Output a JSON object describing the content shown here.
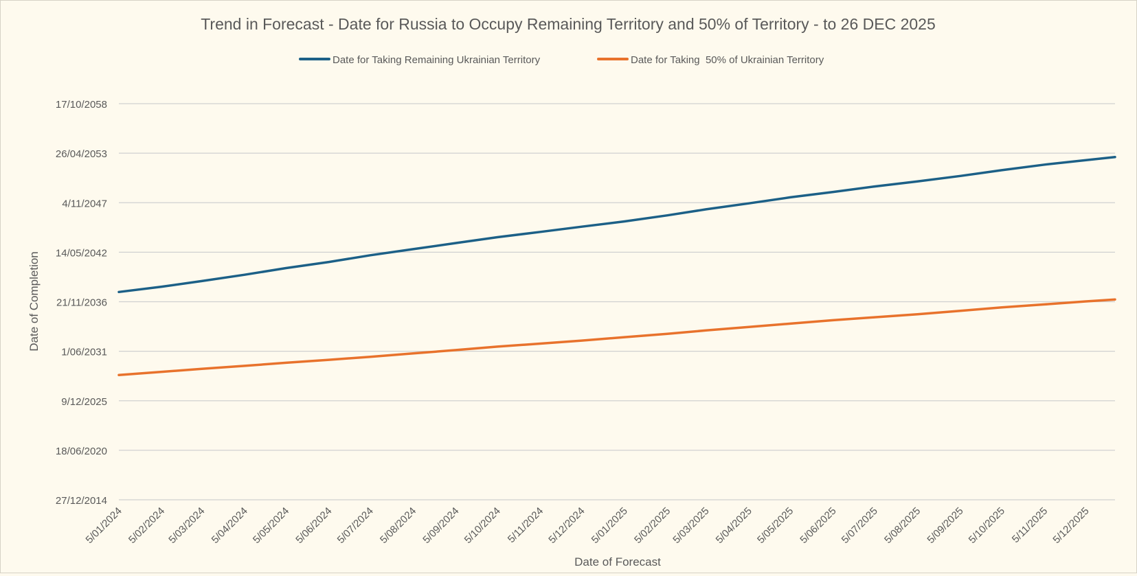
{
  "chart_data": {
    "type": "line",
    "title": "Trend in Forecast - Date for Russia to Occupy Remaining Territory and 50% of Territory - to 26 DEC 2025",
    "xlabel": "Date of Forecast",
    "ylabel": "Date of Completion",
    "legend_position": "top",
    "grid": true,
    "x_tick_labels": [
      "5/01/2024",
      "5/02/2024",
      "5/03/2024",
      "5/04/2024",
      "5/05/2024",
      "5/06/2024",
      "5/07/2024",
      "5/08/2024",
      "5/09/2024",
      "5/10/2024",
      "5/11/2024",
      "5/12/2024",
      "5/01/2025",
      "5/02/2025",
      "5/03/2025",
      "5/04/2025",
      "5/05/2025",
      "5/06/2025",
      "5/07/2025",
      "5/08/2025",
      "5/09/2025",
      "5/10/2025",
      "5/11/2025",
      "5/12/2025"
    ],
    "x_range": [
      "2024-01-05",
      "2025-12-26"
    ],
    "y_tick_labels": [
      "27/12/2014",
      "18/06/2020",
      "9/12/2025",
      "1/06/2031",
      "21/11/2036",
      "14/05/2042",
      "4/11/2047",
      "26/04/2053",
      "17/10/2058"
    ],
    "y_range": [
      "2014-12-27",
      "2058-10-17"
    ],
    "series": [
      {
        "name": "Date for Taking Remaining Ukrainian Territory",
        "color": "#1c6087",
        "points": [
          [
            "2024-01-05",
            "2037-12-20"
          ],
          [
            "2024-02-05",
            "2038-07-20"
          ],
          [
            "2024-03-05",
            "2039-03-05"
          ],
          [
            "2024-04-05",
            "2039-11-15"
          ],
          [
            "2024-05-05",
            "2040-08-10"
          ],
          [
            "2024-06-05",
            "2041-04-15"
          ],
          [
            "2024-07-05",
            "2042-01-10"
          ],
          [
            "2024-08-05",
            "2042-09-15"
          ],
          [
            "2024-09-05",
            "2043-05-20"
          ],
          [
            "2024-10-05",
            "2044-01-10"
          ],
          [
            "2024-11-05",
            "2044-08-10"
          ],
          [
            "2024-12-05",
            "2045-03-10"
          ],
          [
            "2025-01-05",
            "2045-10-10"
          ],
          [
            "2025-02-05",
            "2046-06-10"
          ],
          [
            "2025-03-05",
            "2047-02-10"
          ],
          [
            "2025-04-05",
            "2047-10-10"
          ],
          [
            "2025-05-05",
            "2048-06-10"
          ],
          [
            "2025-06-05",
            "2049-01-10"
          ],
          [
            "2025-07-05",
            "2049-08-20"
          ],
          [
            "2025-08-05",
            "2050-03-10"
          ],
          [
            "2025-09-05",
            "2050-10-20"
          ],
          [
            "2025-10-05",
            "2051-06-10"
          ],
          [
            "2025-11-05",
            "2052-01-20"
          ],
          [
            "2025-12-05",
            "2052-07-20"
          ],
          [
            "2025-12-26",
            "2052-11-20"
          ]
        ]
      },
      {
        "name": "Date for Taking  50% of Ukrainian Territory",
        "color": "#e8722c",
        "points": [
          [
            "2024-01-05",
            "2028-10-15"
          ],
          [
            "2024-02-05",
            "2029-02-20"
          ],
          [
            "2024-03-05",
            "2029-06-20"
          ],
          [
            "2024-04-05",
            "2029-10-20"
          ],
          [
            "2024-05-05",
            "2030-02-20"
          ],
          [
            "2024-06-05",
            "2030-06-20"
          ],
          [
            "2024-07-05",
            "2030-10-20"
          ],
          [
            "2024-08-05",
            "2031-03-05"
          ],
          [
            "2024-09-05",
            "2031-07-20"
          ],
          [
            "2024-10-05",
            "2031-12-05"
          ],
          [
            "2024-11-05",
            "2032-04-05"
          ],
          [
            "2024-12-05",
            "2032-08-05"
          ],
          [
            "2025-01-05",
            "2032-12-20"
          ],
          [
            "2025-02-05",
            "2033-05-05"
          ],
          [
            "2025-03-05",
            "2033-09-20"
          ],
          [
            "2025-04-05",
            "2034-02-05"
          ],
          [
            "2025-05-05",
            "2034-06-20"
          ],
          [
            "2025-06-05",
            "2034-11-05"
          ],
          [
            "2025-07-05",
            "2035-03-05"
          ],
          [
            "2025-08-05",
            "2035-07-05"
          ],
          [
            "2025-09-05",
            "2035-11-20"
          ],
          [
            "2025-10-05",
            "2036-04-05"
          ],
          [
            "2025-11-05",
            "2036-08-05"
          ],
          [
            "2025-12-05",
            "2036-12-05"
          ],
          [
            "2025-12-26",
            "2037-02-20"
          ]
        ]
      }
    ]
  }
}
